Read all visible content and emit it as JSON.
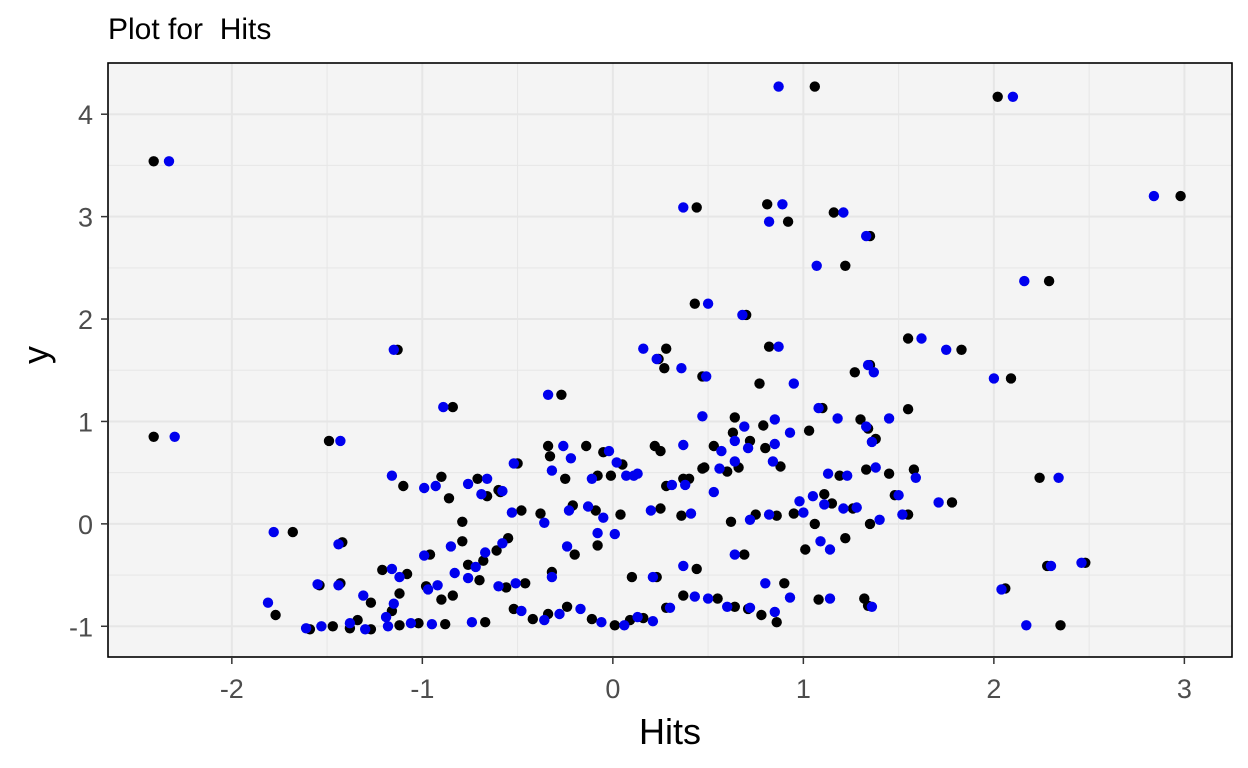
{
  "chart_data": {
    "type": "scatter",
    "title": "Plot for  Hits",
    "xlabel": "Hits",
    "ylabel": "y",
    "xlim": [
      -2.65,
      3.25
    ],
    "ylim": [
      -1.3,
      4.5
    ],
    "xticks": [
      -2,
      -1,
      0,
      1,
      2,
      3
    ],
    "yticks": [
      -1,
      0,
      1,
      2,
      3,
      4
    ],
    "xtick_labels": [
      "-2",
      "-1",
      "0",
      "1",
      "2",
      "3"
    ],
    "ytick_labels": [
      "-1",
      "0",
      "1",
      "2",
      "3",
      "4"
    ],
    "grid": true,
    "background": "#f4f4f4",
    "colors": {
      "series_a": "#000000",
      "series_b": "#0000ee",
      "grid": "#e6e6e6",
      "panel_border": "#000000"
    },
    "series": [
      {
        "color": "#000000",
        "points": [
          [
            -2.41,
            3.54
          ],
          [
            -2.41,
            0.85
          ],
          [
            1.06,
            4.27
          ],
          [
            2.02,
            4.17
          ],
          [
            2.98,
            3.2
          ],
          [
            0.44,
            3.09
          ],
          [
            0.81,
            3.12
          ],
          [
            0.92,
            2.95
          ],
          [
            1.16,
            3.04
          ],
          [
            1.35,
            2.81
          ],
          [
            1.22,
            2.52
          ],
          [
            2.29,
            2.37
          ],
          [
            0.43,
            2.15
          ],
          [
            0.7,
            2.04
          ],
          [
            1.55,
            1.81
          ],
          [
            1.83,
            1.7
          ],
          [
            -1.13,
            1.7
          ],
          [
            0.28,
            1.71
          ],
          [
            0.82,
            1.73
          ],
          [
            0.24,
            1.61
          ],
          [
            0.27,
            1.52
          ],
          [
            1.27,
            1.48
          ],
          [
            1.35,
            1.55
          ],
          [
            2.09,
            1.42
          ],
          [
            0.47,
            1.44
          ],
          [
            0.77,
            1.37
          ],
          [
            -0.84,
            1.14
          ],
          [
            -0.27,
            1.26
          ],
          [
            1.1,
            1.13
          ],
          [
            1.55,
            1.12
          ],
          [
            -1.49,
            0.81
          ],
          [
            1.03,
            0.91
          ],
          [
            1.3,
            1.02
          ],
          [
            1.34,
            0.93
          ],
          [
            1.38,
            0.83
          ],
          [
            0.79,
            0.96
          ],
          [
            0.63,
            0.89
          ],
          [
            0.64,
            1.04
          ],
          [
            0.72,
            0.81
          ],
          [
            0.8,
            0.74
          ],
          [
            0.53,
            0.76
          ],
          [
            0.22,
            0.76
          ],
          [
            -0.34,
            0.76
          ],
          [
            -0.14,
            0.76
          ],
          [
            -0.05,
            0.7
          ],
          [
            0.25,
            0.71
          ],
          [
            0.4,
            0.44
          ],
          [
            0.48,
            0.55
          ],
          [
            0.66,
            0.55
          ],
          [
            0.88,
            0.56
          ],
          [
            1.19,
            0.47
          ],
          [
            1.33,
            0.53
          ],
          [
            1.45,
            0.49
          ],
          [
            1.58,
            0.53
          ],
          [
            2.24,
            0.45
          ],
          [
            0.05,
            0.58
          ],
          [
            -0.01,
            0.47
          ],
          [
            -0.08,
            0.47
          ],
          [
            -0.25,
            0.44
          ],
          [
            -0.33,
            0.66
          ],
          [
            -0.5,
            0.59
          ],
          [
            -0.71,
            0.44
          ],
          [
            -0.59,
            0.31
          ],
          [
            -0.66,
            0.27
          ],
          [
            -0.86,
            0.25
          ],
          [
            -1.1,
            0.37
          ],
          [
            -0.79,
            0.02
          ],
          [
            -0.9,
            0.46
          ],
          [
            -0.6,
            0.33
          ],
          [
            -0.38,
            0.1
          ],
          [
            -0.48,
            0.13
          ],
          [
            -0.21,
            0.18
          ],
          [
            -0.09,
            0.13
          ],
          [
            0.04,
            0.09
          ],
          [
            0.25,
            0.15
          ],
          [
            0.37,
            0.44
          ],
          [
            0.28,
            0.37
          ],
          [
            0.36,
            0.08
          ],
          [
            0.47,
            0.54
          ],
          [
            0.6,
            0.51
          ],
          [
            0.62,
            0.02
          ],
          [
            0.75,
            0.09
          ],
          [
            0.86,
            0.08
          ],
          [
            0.95,
            0.1
          ],
          [
            1.06,
            0.0
          ],
          [
            1.11,
            0.29
          ],
          [
            1.15,
            0.2
          ],
          [
            1.26,
            0.15
          ],
          [
            1.35,
            0.0
          ],
          [
            1.48,
            0.28
          ],
          [
            1.55,
            0.09
          ],
          [
            1.78,
            0.21
          ],
          [
            1.01,
            -0.25
          ],
          [
            1.22,
            -0.14
          ],
          [
            0.69,
            -0.3
          ],
          [
            0.44,
            -0.44
          ],
          [
            0.23,
            -0.52
          ],
          [
            0.1,
            -0.52
          ],
          [
            -0.08,
            -0.21
          ],
          [
            -0.2,
            -0.3
          ],
          [
            -0.32,
            -0.47
          ],
          [
            -0.46,
            -0.58
          ],
          [
            -0.55,
            -0.14
          ],
          [
            -0.61,
            -0.26
          ],
          [
            -0.68,
            -0.36
          ],
          [
            -0.76,
            -0.4
          ],
          [
            -0.79,
            -0.17
          ],
          [
            -0.84,
            -0.7
          ],
          [
            -0.9,
            -0.74
          ],
          [
            -0.98,
            -0.61
          ],
          [
            -1.08,
            -0.49
          ],
          [
            -1.12,
            -0.68
          ],
          [
            -1.16,
            -0.85
          ],
          [
            -1.27,
            -0.77
          ],
          [
            -1.34,
            -0.94
          ],
          [
            -1.38,
            -1.02
          ],
          [
            -1.43,
            -0.58
          ],
          [
            -1.54,
            -0.6
          ],
          [
            -1.59,
            -1.03
          ],
          [
            -1.68,
            -0.08
          ],
          [
            -1.77,
            -0.89
          ],
          [
            -1.42,
            -0.18
          ],
          [
            -1.21,
            -0.45
          ],
          [
            -0.96,
            -0.3
          ],
          [
            -0.7,
            -0.55
          ],
          [
            -0.56,
            -0.62
          ],
          [
            -0.42,
            -0.93
          ],
          [
            -0.34,
            -0.88
          ],
          [
            -0.24,
            -0.81
          ],
          [
            -0.11,
            -0.93
          ],
          [
            0.01,
            -0.99
          ],
          [
            0.09,
            -0.94
          ],
          [
            0.16,
            -0.92
          ],
          [
            0.28,
            -0.82
          ],
          [
            0.37,
            -0.7
          ],
          [
            0.55,
            -0.73
          ],
          [
            0.64,
            -0.81
          ],
          [
            0.71,
            -0.83
          ],
          [
            0.78,
            -0.89
          ],
          [
            0.86,
            -0.96
          ],
          [
            0.9,
            -0.58
          ],
          [
            1.08,
            -0.74
          ],
          [
            1.32,
            -0.73
          ],
          [
            1.34,
            -0.8
          ],
          [
            2.06,
            -0.63
          ],
          [
            2.28,
            -0.41
          ],
          [
            2.48,
            -0.38
          ],
          [
            2.35,
            -0.99
          ],
          [
            -0.67,
            -0.96
          ],
          [
            -0.88,
            -0.98
          ],
          [
            -1.02,
            -0.97
          ],
          [
            -1.12,
            -0.99
          ],
          [
            -1.27,
            -1.03
          ],
          [
            -1.47,
            -1.0
          ],
          [
            -0.52,
            -0.83
          ]
        ]
      },
      {
        "color": "#0000ee",
        "points": [
          [
            -2.33,
            3.54
          ],
          [
            -2.3,
            0.85
          ],
          [
            0.87,
            4.27
          ],
          [
            2.1,
            4.17
          ],
          [
            2.84,
            3.2
          ],
          [
            0.37,
            3.09
          ],
          [
            0.89,
            3.12
          ],
          [
            0.82,
            2.95
          ],
          [
            1.21,
            3.04
          ],
          [
            1.33,
            2.81
          ],
          [
            1.07,
            2.52
          ],
          [
            2.16,
            2.37
          ],
          [
            0.5,
            2.15
          ],
          [
            0.68,
            2.04
          ],
          [
            1.62,
            1.81
          ],
          [
            1.75,
            1.7
          ],
          [
            -1.15,
            1.7
          ],
          [
            0.16,
            1.71
          ],
          [
            0.87,
            1.73
          ],
          [
            0.23,
            1.61
          ],
          [
            0.36,
            1.52
          ],
          [
            1.34,
            1.55
          ],
          [
            1.37,
            1.48
          ],
          [
            2.0,
            1.42
          ],
          [
            0.49,
            1.44
          ],
          [
            0.95,
            1.37
          ],
          [
            -0.89,
            1.14
          ],
          [
            -0.34,
            1.26
          ],
          [
            1.08,
            1.13
          ],
          [
            1.36,
            0.8
          ],
          [
            -1.43,
            0.81
          ],
          [
            0.93,
            0.89
          ],
          [
            1.18,
            1.03
          ],
          [
            1.45,
            1.03
          ],
          [
            1.33,
            0.95
          ],
          [
            0.85,
            1.02
          ],
          [
            0.64,
            0.81
          ],
          [
            0.69,
            0.95
          ],
          [
            0.57,
            0.71
          ],
          [
            0.85,
            0.78
          ],
          [
            0.47,
            1.05
          ],
          [
            0.37,
            0.77
          ],
          [
            -0.26,
            0.76
          ],
          [
            -0.02,
            0.71
          ],
          [
            0.07,
            0.47
          ],
          [
            0.13,
            0.49
          ],
          [
            0.38,
            0.38
          ],
          [
            0.56,
            0.54
          ],
          [
            0.71,
            0.74
          ],
          [
            0.84,
            0.61
          ],
          [
            1.13,
            0.49
          ],
          [
            1.23,
            0.47
          ],
          [
            1.38,
            0.55
          ],
          [
            1.59,
            0.45
          ],
          [
            2.34,
            0.45
          ],
          [
            0.02,
            0.6
          ],
          [
            -0.11,
            0.44
          ],
          [
            -0.32,
            0.52
          ],
          [
            -0.22,
            0.64
          ],
          [
            -0.52,
            0.59
          ],
          [
            -0.66,
            0.44
          ],
          [
            -0.76,
            0.39
          ],
          [
            -0.69,
            0.29
          ],
          [
            -0.99,
            0.35
          ],
          [
            -1.16,
            0.47
          ],
          [
            -0.93,
            0.37
          ],
          [
            -0.58,
            0.32
          ],
          [
            -0.53,
            0.11
          ],
          [
            -0.36,
            0.01
          ],
          [
            -0.23,
            0.13
          ],
          [
            -0.13,
            0.17
          ],
          [
            -0.05,
            0.06
          ],
          [
            0.11,
            0.47
          ],
          [
            0.2,
            0.13
          ],
          [
            0.31,
            0.38
          ],
          [
            0.41,
            0.1
          ],
          [
            0.53,
            0.31
          ],
          [
            0.64,
            0.61
          ],
          [
            0.72,
            0.04
          ],
          [
            0.82,
            0.09
          ],
          [
            0.98,
            0.22
          ],
          [
            1.0,
            0.11
          ],
          [
            1.05,
            0.27
          ],
          [
            1.11,
            0.19
          ],
          [
            1.21,
            0.15
          ],
          [
            1.28,
            0.16
          ],
          [
            1.4,
            0.04
          ],
          [
            1.5,
            0.28
          ],
          [
            1.52,
            0.09
          ],
          [
            1.71,
            0.21
          ],
          [
            1.09,
            -0.17
          ],
          [
            1.14,
            -0.25
          ],
          [
            0.64,
            -0.3
          ],
          [
            0.37,
            -0.41
          ],
          [
            0.21,
            -0.52
          ],
          [
            0.01,
            -0.1
          ],
          [
            -0.08,
            -0.09
          ],
          [
            -0.24,
            -0.22
          ],
          [
            -0.32,
            -0.52
          ],
          [
            -0.51,
            -0.58
          ],
          [
            -0.58,
            -0.19
          ],
          [
            -0.67,
            -0.28
          ],
          [
            -0.72,
            -0.42
          ],
          [
            -0.83,
            -0.48
          ],
          [
            -0.85,
            -0.22
          ],
          [
            -0.92,
            -0.6
          ],
          [
            -0.97,
            -0.64
          ],
          [
            -1.12,
            -0.52
          ],
          [
            -1.15,
            -0.78
          ],
          [
            -1.19,
            -0.91
          ],
          [
            -1.31,
            -0.7
          ],
          [
            -1.38,
            -0.97
          ],
          [
            -1.44,
            -0.6
          ],
          [
            -1.55,
            -0.59
          ],
          [
            -1.61,
            -1.02
          ],
          [
            -1.78,
            -0.08
          ],
          [
            -1.81,
            -0.77
          ],
          [
            -1.44,
            -0.2
          ],
          [
            -1.16,
            -0.44
          ],
          [
            -0.99,
            -0.31
          ],
          [
            -0.76,
            -0.53
          ],
          [
            -0.6,
            -0.61
          ],
          [
            -0.36,
            -0.94
          ],
          [
            -0.28,
            -0.88
          ],
          [
            -0.17,
            -0.83
          ],
          [
            -0.06,
            -0.96
          ],
          [
            0.06,
            -0.99
          ],
          [
            0.13,
            -0.91
          ],
          [
            0.21,
            -0.95
          ],
          [
            0.3,
            -0.82
          ],
          [
            0.43,
            -0.71
          ],
          [
            0.5,
            -0.73
          ],
          [
            0.6,
            -0.81
          ],
          [
            0.72,
            -0.82
          ],
          [
            0.85,
            -0.86
          ],
          [
            0.8,
            -0.58
          ],
          [
            0.93,
            -0.72
          ],
          [
            1.14,
            -0.73
          ],
          [
            1.36,
            -0.81
          ],
          [
            2.04,
            -0.64
          ],
          [
            2.3,
            -0.41
          ],
          [
            2.46,
            -0.38
          ],
          [
            2.17,
            -0.99
          ],
          [
            -0.74,
            -0.96
          ],
          [
            -0.95,
            -0.98
          ],
          [
            -1.06,
            -0.97
          ],
          [
            -1.18,
            -1.0
          ],
          [
            -1.3,
            -1.03
          ],
          [
            -1.53,
            -1.0
          ],
          [
            -0.48,
            -0.85
          ]
        ]
      }
    ]
  }
}
